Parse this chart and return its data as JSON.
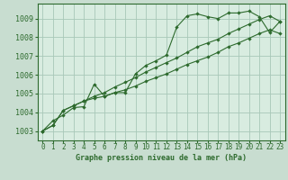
{
  "title": "Graphe pression niveau de la mer (hPa)",
  "bg_color": "#c8ddd0",
  "plot_bg": "#d8ece0",
  "grid_color": "#a8c8b8",
  "line_color": "#2d6a2d",
  "x_labels": [
    "0",
    "1",
    "2",
    "3",
    "4",
    "5",
    "6",
    "7",
    "8",
    "9",
    "10",
    "11",
    "12",
    "13",
    "14",
    "15",
    "16",
    "17",
    "18",
    "19",
    "20",
    "21",
    "22",
    "23"
  ],
  "ylim": [
    1002.5,
    1009.8
  ],
  "yticks": [
    1003,
    1004,
    1005,
    1006,
    1007,
    1008,
    1009
  ],
  "series1": [
    1003.0,
    1003.55,
    1003.85,
    1004.25,
    1004.3,
    1005.5,
    1004.85,
    1005.05,
    1005.05,
    1006.05,
    1006.5,
    1006.75,
    1007.05,
    1008.55,
    1009.15,
    1009.25,
    1009.1,
    1009.0,
    1009.3,
    1009.3,
    1009.4,
    1009.1,
    1008.25,
    1008.85
  ],
  "series2": [
    1003.0,
    1003.3,
    1004.1,
    1004.35,
    1004.6,
    1004.75,
    1004.85,
    1005.05,
    1005.2,
    1005.4,
    1005.65,
    1005.85,
    1006.05,
    1006.3,
    1006.55,
    1006.75,
    1006.95,
    1007.2,
    1007.5,
    1007.7,
    1007.95,
    1008.2,
    1008.4,
    1008.2
  ],
  "series3": [
    1003.0,
    1003.3,
    1004.1,
    1004.35,
    1004.6,
    1004.85,
    1005.05,
    1005.35,
    1005.6,
    1005.85,
    1006.15,
    1006.4,
    1006.65,
    1006.9,
    1007.2,
    1007.5,
    1007.7,
    1007.9,
    1008.2,
    1008.45,
    1008.7,
    1008.95,
    1009.15,
    1008.85
  ],
  "xlabel_fontsize": 6.0,
  "tick_fontsize": 5.5,
  "ytick_fontsize": 6.0,
  "figsize": [
    3.2,
    2.0
  ],
  "dpi": 100
}
